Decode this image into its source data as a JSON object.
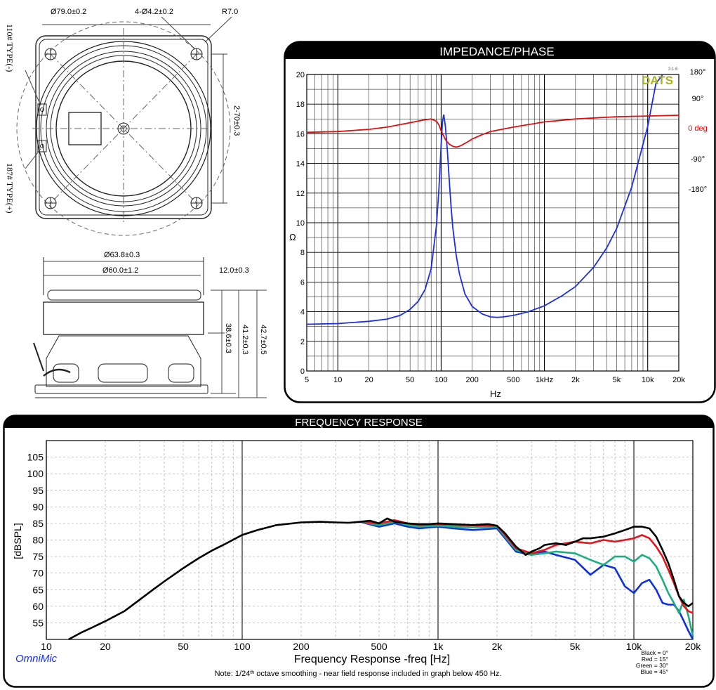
{
  "drawing": {
    "top_dims": {
      "outer_dia": "Ø79.0±0.2",
      "holes": "4-Ø4.2±0.2",
      "radius": "R7.0",
      "hole_spacing": "2-70±0.3",
      "term_neg": "110# TYPE(-)",
      "term_pos": "187# TYPE(+)"
    },
    "side_dims": {
      "outer_dia": "Ø63.8±0.3",
      "inner_dia": "Ø60.0±1.2",
      "magnet_h": "12.0±0.3",
      "h1": "38.6±0.3",
      "h2": "41.2±0.3",
      "h3": "42.7±0.5"
    }
  },
  "impedance_panel": {
    "title": "IMPEDANCE/PHASE",
    "logo": "DATS",
    "logo_version": "3.1.6",
    "ylabel": "Ω",
    "xlabel": "Hz",
    "phase_labels": [
      "180°",
      "90°",
      "0 deg",
      "-90°",
      "-180°"
    ],
    "y_ticks": [
      "0",
      "2",
      "4",
      "6",
      "8",
      "10",
      "12",
      "14",
      "16",
      "18",
      "20"
    ],
    "x_ticks": [
      "5",
      "10",
      "20",
      "50",
      "100",
      "200",
      "500",
      "1kHz",
      "2k",
      "5k",
      "10k",
      "20k"
    ]
  },
  "freq_panel": {
    "title": "FREQUENCY RESPONSE",
    "ylabel": "[dBSPL]",
    "xlabel": "Frequency Response -freq [Hz]",
    "brand": "OmniMic",
    "note_pre": "Note: 1/24",
    "note_sup": "th",
    "note_post": " octave smoothing - near field response included in graph below 450 Hz.",
    "legend": [
      "Black = 0°",
      "Red = 15°",
      "Green = 30°",
      "Blue = 45°"
    ],
    "y_ticks": [
      "55",
      "60",
      "65",
      "70",
      "75",
      "80",
      "85",
      "90",
      "95",
      "100",
      "105"
    ],
    "x_ticks": [
      "10",
      "20",
      "50",
      "100",
      "200",
      "500",
      "1k",
      "2k",
      "5k",
      "10k",
      "20k"
    ]
  },
  "colors": {
    "black": "#000000",
    "red": "#e8141b",
    "green": "#1aaf7f",
    "blue": "#1030e0",
    "imp_blue": "#1a2fe6",
    "phase_red": "#e01010",
    "logo": "#a9b418"
  },
  "chart_data": [
    {
      "type": "line",
      "title": "IMPEDANCE/PHASE",
      "xlabel": "Hz",
      "ylabel": "Ω",
      "x_scale": "log",
      "xlim": [
        5,
        20000
      ],
      "ylim": [
        0,
        20
      ],
      "grid": true,
      "series": [
        {
          "x": [
            5,
            10,
            20,
            30,
            40,
            50,
            60,
            70,
            80,
            90,
            95,
            100,
            103,
            106,
            110,
            115,
            120,
            125,
            130,
            140,
            150,
            170,
            200,
            250,
            300,
            350,
            400,
            500,
            700,
            1000,
            1500,
            2000,
            3000,
            4000,
            5000,
            7000,
            10000,
            12000,
            14000
          ],
          "y": [
            3.15,
            3.2,
            3.35,
            3.5,
            3.75,
            4.15,
            4.7,
            5.5,
            6.9,
            9.8,
            12.2,
            15.2,
            16.8,
            17.3,
            16.5,
            14.8,
            12.8,
            11.0,
            9.6,
            7.8,
            6.6,
            5.2,
            4.35,
            3.85,
            3.65,
            3.62,
            3.65,
            3.75,
            4.0,
            4.4,
            5.1,
            5.7,
            7.0,
            8.3,
            9.6,
            12.4,
            16.5,
            19.4,
            21.0
          ]
        },
        {
          "x": [
            5,
            10,
            20,
            30,
            50,
            70,
            80,
            90,
            95,
            100,
            105,
            110,
            120,
            130,
            140,
            150,
            160,
            180,
            200,
            250,
            300,
            500,
            1000,
            2000,
            5000,
            10000,
            20000
          ],
          "y": [
            16.1,
            16.15,
            16.3,
            16.45,
            16.75,
            16.95,
            17.0,
            16.85,
            16.6,
            16.2,
            15.9,
            15.6,
            15.3,
            15.15,
            15.1,
            15.15,
            15.25,
            15.45,
            15.65,
            15.95,
            16.15,
            16.45,
            16.8,
            17.0,
            17.15,
            17.2,
            17.25
          ]
        }
      ]
    },
    {
      "type": "line",
      "title": "FREQUENCY RESPONSE",
      "xlabel": "Frequency Response -freq [Hz]",
      "ylabel": "[dBSPL]",
      "x_scale": "log",
      "xlim": [
        10,
        20000
      ],
      "ylim": [
        50,
        110
      ],
      "grid": true,
      "legend": "bottom-right",
      "series": [
        {
          "name": "Black = 0°",
          "x": [
            13,
            15,
            17,
            20,
            25,
            30,
            35,
            40,
            50,
            60,
            70,
            80,
            100,
            120,
            150,
            200,
            250,
            300,
            350,
            400,
            450,
            500,
            550,
            600,
            700,
            800,
            900,
            1000,
            1200,
            1500,
            1800,
            2000,
            2200,
            2500,
            2800,
            3000,
            3300,
            3500,
            4000,
            4500,
            5000,
            5500,
            6000,
            7000,
            8000,
            9000,
            10000,
            11000,
            12000,
            13000,
            14000,
            15000,
            16000,
            17000,
            18000,
            19000,
            20000
          ],
          "y": [
            50,
            52,
            53.5,
            55.5,
            58.5,
            62,
            65,
            67.5,
            71.5,
            74.5,
            76.8,
            78.5,
            81.5,
            83,
            84.5,
            85.3,
            85.5,
            85.3,
            85.2,
            85.5,
            85.8,
            85,
            86.5,
            85.5,
            85,
            84.8,
            84.8,
            85,
            84.8,
            84.5,
            84.8,
            84.3,
            82,
            78,
            75.5,
            76.5,
            77.5,
            78.5,
            79,
            78.5,
            79.5,
            80.5,
            80.5,
            81,
            82,
            83,
            84,
            84,
            83.5,
            81,
            77,
            73,
            68,
            63,
            61,
            60,
            61
          ]
        },
        {
          "name": "Red = 15°",
          "x": [
            400,
            500,
            600,
            700,
            800,
            1000,
            1200,
            1500,
            2000,
            2200,
            2500,
            3000,
            3500,
            4000,
            5000,
            6000,
            7000,
            8000,
            9000,
            10000,
            11000,
            12000,
            13000,
            14000,
            15000,
            16000,
            17000,
            18000,
            19000,
            20000
          ],
          "y": [
            85.5,
            85,
            86,
            85,
            84.5,
            84.8,
            84.6,
            84.4,
            84.3,
            81.5,
            77.5,
            76,
            77,
            78.5,
            79.5,
            79,
            80,
            79.5,
            80,
            80.5,
            81.5,
            80.5,
            78,
            75,
            71,
            67,
            63,
            60,
            58.5,
            58
          ]
        },
        {
          "name": "Green = 30°",
          "x": [
            400,
            500,
            600,
            700,
            800,
            1000,
            1200,
            1500,
            2000,
            2200,
            2500,
            3000,
            3500,
            4000,
            5000,
            6000,
            7000,
            8000,
            9000,
            10000,
            11000,
            12000,
            13000,
            14000,
            15000,
            16000,
            17000,
            18000,
            19000,
            20000
          ],
          "y": [
            85.5,
            84.5,
            85.5,
            84.5,
            84,
            84.3,
            84,
            83.8,
            84,
            81,
            77,
            75.5,
            76,
            76.5,
            76,
            74,
            72.5,
            75,
            75,
            73.5,
            75.5,
            74.5,
            72,
            68,
            64,
            61,
            58,
            62,
            57,
            51
          ]
        },
        {
          "name": "Blue = 45°",
          "x": [
            400,
            500,
            600,
            700,
            800,
            1000,
            1200,
            1500,
            2000,
            2200,
            2500,
            3000,
            3500,
            4000,
            5000,
            6000,
            7000,
            8000,
            9000,
            10000,
            11000,
            12000,
            13000,
            14000,
            15000,
            16000,
            17000,
            18000,
            19000,
            20000
          ],
          "y": [
            85.5,
            84,
            85,
            84,
            83.5,
            84,
            83.5,
            83,
            83.5,
            80.5,
            76.5,
            75.5,
            76.5,
            75.5,
            74,
            69.5,
            72.5,
            71.5,
            66,
            64,
            67,
            68,
            65,
            61,
            60.5,
            60.5,
            58.5,
            55.5,
            52.5,
            50
          ]
        }
      ]
    }
  ]
}
